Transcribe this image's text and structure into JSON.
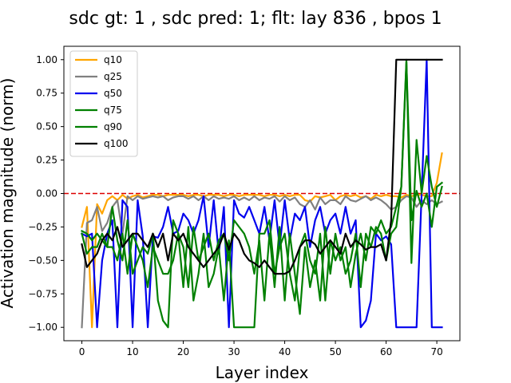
{
  "chart_data": {
    "type": "line",
    "title": "sdc gt: 1 , sdc pred: 1; flt: lay 836 , bpos 1",
    "xlabel": "Layer index",
    "ylabel": "Activation magnitude (norm)",
    "xlim": [
      -3.55,
      74.55
    ],
    "ylim": [
      -1.1,
      1.1
    ],
    "xticks": [
      0,
      10,
      20,
      30,
      40,
      50,
      60,
      70
    ],
    "yticks": [
      -1.0,
      -0.75,
      -0.5,
      -0.25,
      0.0,
      0.25,
      0.5,
      0.75,
      1.0
    ],
    "ytick_labels": [
      "−1.00",
      "−0.75",
      "−0.50",
      "−0.25",
      "0.00",
      "0.25",
      "0.50",
      "0.75",
      "1.00"
    ],
    "grid": false,
    "legend_position": "top-left",
    "hline": {
      "y": 0.0,
      "color": "#dd0000",
      "style": "dashed"
    },
    "x": [
      0,
      1,
      2,
      3,
      4,
      5,
      6,
      7,
      8,
      9,
      10,
      11,
      12,
      13,
      14,
      15,
      16,
      17,
      18,
      19,
      20,
      21,
      22,
      23,
      24,
      25,
      26,
      27,
      28,
      29,
      30,
      31,
      32,
      33,
      34,
      35,
      36,
      37,
      38,
      39,
      40,
      41,
      42,
      43,
      44,
      45,
      46,
      47,
      48,
      49,
      50,
      51,
      52,
      53,
      54,
      55,
      56,
      57,
      58,
      59,
      60,
      61,
      62,
      63,
      64,
      65,
      66,
      67,
      68,
      69,
      70,
      71
    ],
    "series": [
      {
        "name": "q10",
        "color": "#ffa500",
        "values": [
          -0.25,
          -0.1,
          -1.0,
          -0.08,
          -0.15,
          -0.05,
          -0.02,
          -0.05,
          -0.01,
          -0.04,
          -0.02,
          -0.01,
          -0.03,
          -0.02,
          -0.01,
          -0.01,
          -0.02,
          -0.01,
          -0.01,
          -0.01,
          -0.01,
          -0.02,
          -0.01,
          -0.01,
          -0.02,
          -0.01,
          -0.01,
          -0.01,
          -0.02,
          -0.01,
          -0.01,
          -0.02,
          -0.01,
          -0.01,
          -0.01,
          -0.01,
          -0.02,
          -0.01,
          -0.01,
          -0.02,
          -0.01,
          -0.02,
          -0.01,
          -0.01,
          -0.05,
          -0.06,
          -0.02,
          -0.03,
          -0.02,
          -0.01,
          -0.05,
          -0.02,
          -0.01,
          -0.02,
          -0.01,
          -0.03,
          -0.02,
          -0.04,
          -0.01,
          -0.02,
          -0.01,
          -0.02,
          -0.02,
          -0.03,
          -0.01,
          -0.02,
          -0.01,
          -0.01,
          -0.02,
          -0.02,
          0.08,
          0.3
        ]
      },
      {
        "name": "q25",
        "color": "#808080",
        "values": [
          -1.0,
          -0.22,
          -0.2,
          -0.1,
          -0.28,
          -0.22,
          -0.1,
          -0.05,
          -0.3,
          -0.02,
          -0.05,
          -0.02,
          -0.04,
          -0.03,
          -0.02,
          -0.03,
          -0.02,
          -0.05,
          -0.03,
          -0.02,
          -0.02,
          -0.04,
          -0.02,
          -0.05,
          -0.02,
          -0.05,
          -0.02,
          -0.04,
          -0.03,
          -0.04,
          -0.02,
          -0.05,
          -0.03,
          -0.05,
          -0.02,
          -0.05,
          -0.03,
          -0.04,
          -0.02,
          -0.06,
          -0.02,
          -0.05,
          -0.03,
          -0.08,
          -0.1,
          -0.05,
          -0.12,
          -0.03,
          -0.08,
          -0.05,
          -0.05,
          -0.08,
          -0.02,
          -0.05,
          -0.06,
          -0.04,
          -0.02,
          -0.05,
          -0.03,
          -0.05,
          -0.08,
          -0.12,
          -0.1,
          -0.05,
          -0.02,
          -0.03,
          -0.1,
          -0.05,
          -0.08,
          -0.05,
          -0.08,
          -0.06
        ]
      },
      {
        "name": "q50",
        "color": "#0000ee",
        "values": [
          -0.3,
          -0.32,
          -0.3,
          -1.0,
          -0.5,
          -0.3,
          -0.2,
          -1.0,
          -0.05,
          -0.1,
          -1.0,
          -0.05,
          -0.32,
          -1.0,
          -0.32,
          -0.33,
          -0.25,
          -0.1,
          -0.3,
          -0.28,
          -0.15,
          -0.2,
          -0.3,
          -0.2,
          -0.02,
          -0.4,
          -0.05,
          -0.45,
          -0.1,
          -1.0,
          -0.05,
          -0.15,
          -0.18,
          -0.1,
          -0.2,
          -0.3,
          -0.1,
          -0.35,
          -0.05,
          -0.4,
          -0.05,
          -0.35,
          -0.15,
          -0.2,
          -0.1,
          -0.4,
          -0.2,
          -0.1,
          -0.3,
          -0.2,
          -0.15,
          -0.3,
          -0.1,
          -0.3,
          -0.2,
          -1.0,
          -0.95,
          -0.8,
          -0.3,
          -0.35,
          -0.32,
          -0.38,
          -1.0,
          -1.0,
          -1.0,
          -1.0,
          -1.0,
          0.0,
          1.0,
          -1.0,
          -1.0,
          -1.0
        ]
      },
      {
        "name": "q75",
        "color": "#008000",
        "values": [
          -0.28,
          -0.3,
          -0.35,
          -0.3,
          -0.35,
          -0.4,
          -0.1,
          -0.35,
          -0.5,
          -0.2,
          -0.6,
          -0.5,
          -0.4,
          -0.45,
          -0.3,
          -0.8,
          -0.95,
          -1.0,
          -0.2,
          -0.3,
          -0.7,
          -0.25,
          -0.8,
          -0.6,
          -0.3,
          -0.7,
          -0.6,
          -0.4,
          -0.8,
          -0.35,
          -1.0,
          -1.0,
          -1.0,
          -1.0,
          -1.0,
          -0.3,
          -0.3,
          -0.2,
          -0.6,
          -0.4,
          -0.3,
          -0.6,
          -0.8,
          -0.4,
          -0.3,
          -0.5,
          -0.6,
          -0.3,
          -0.8,
          -0.35,
          -0.5,
          -0.4,
          -0.6,
          -0.5,
          -0.3,
          -0.7,
          -0.3,
          -0.4,
          -0.25,
          -0.3,
          -0.5,
          -0.3,
          -0.25,
          0.05,
          0.98,
          -0.2,
          0.02,
          -0.1,
          0.0,
          -0.25,
          0.05,
          0.08
        ]
      },
      {
        "name": "q90",
        "color": "#008000",
        "values": [
          -0.3,
          -0.45,
          -0.4,
          -0.4,
          -0.3,
          -0.4,
          -0.4,
          -0.5,
          -0.3,
          -0.6,
          -0.3,
          -0.4,
          -0.5,
          -0.7,
          -0.4,
          -0.5,
          -0.6,
          -0.6,
          -0.5,
          -0.3,
          -0.4,
          -0.7,
          -0.25,
          -0.5,
          -0.4,
          -0.3,
          -0.5,
          -0.35,
          -0.3,
          -0.5,
          -0.2,
          -0.25,
          -0.3,
          -0.4,
          -0.6,
          -0.35,
          -0.8,
          -0.3,
          -0.7,
          -0.25,
          -0.8,
          -0.3,
          -0.6,
          -0.9,
          -0.4,
          -0.7,
          -0.5,
          -0.8,
          -0.25,
          -0.6,
          -0.3,
          -0.5,
          -0.4,
          -0.7,
          -0.45,
          -0.3,
          -0.5,
          -0.25,
          -0.3,
          -0.2,
          -0.3,
          -0.25,
          -0.1,
          0.05,
          1.0,
          -0.52,
          0.4,
          0.0,
          0.28,
          0.05,
          -0.1,
          0.05
        ]
      },
      {
        "name": "q100",
        "color": "#000000",
        "values": [
          -0.38,
          -0.55,
          -0.5,
          -0.45,
          -0.35,
          -0.3,
          -0.35,
          -0.25,
          -0.4,
          -0.35,
          -0.3,
          -0.3,
          -0.35,
          -0.4,
          -0.3,
          -0.4,
          -0.3,
          -0.5,
          -0.3,
          -0.35,
          -0.3,
          -0.4,
          -0.45,
          -0.5,
          -0.55,
          -0.5,
          -0.45,
          -0.4,
          -0.3,
          -0.42,
          -0.3,
          -0.35,
          -0.45,
          -0.5,
          -0.52,
          -0.55,
          -0.5,
          -0.55,
          -0.6,
          -0.6,
          -0.6,
          -0.58,
          -0.5,
          -0.4,
          -0.35,
          -0.35,
          -0.38,
          -0.45,
          -0.4,
          -0.35,
          -0.4,
          -0.45,
          -0.3,
          -0.4,
          -0.35,
          -0.38,
          -0.42,
          -0.4,
          -0.4,
          -0.38,
          -0.5,
          -0.2,
          1.0,
          1.0,
          1.0,
          1.0,
          1.0,
          1.0,
          1.0,
          1.0,
          1.0,
          1.0
        ]
      }
    ]
  }
}
